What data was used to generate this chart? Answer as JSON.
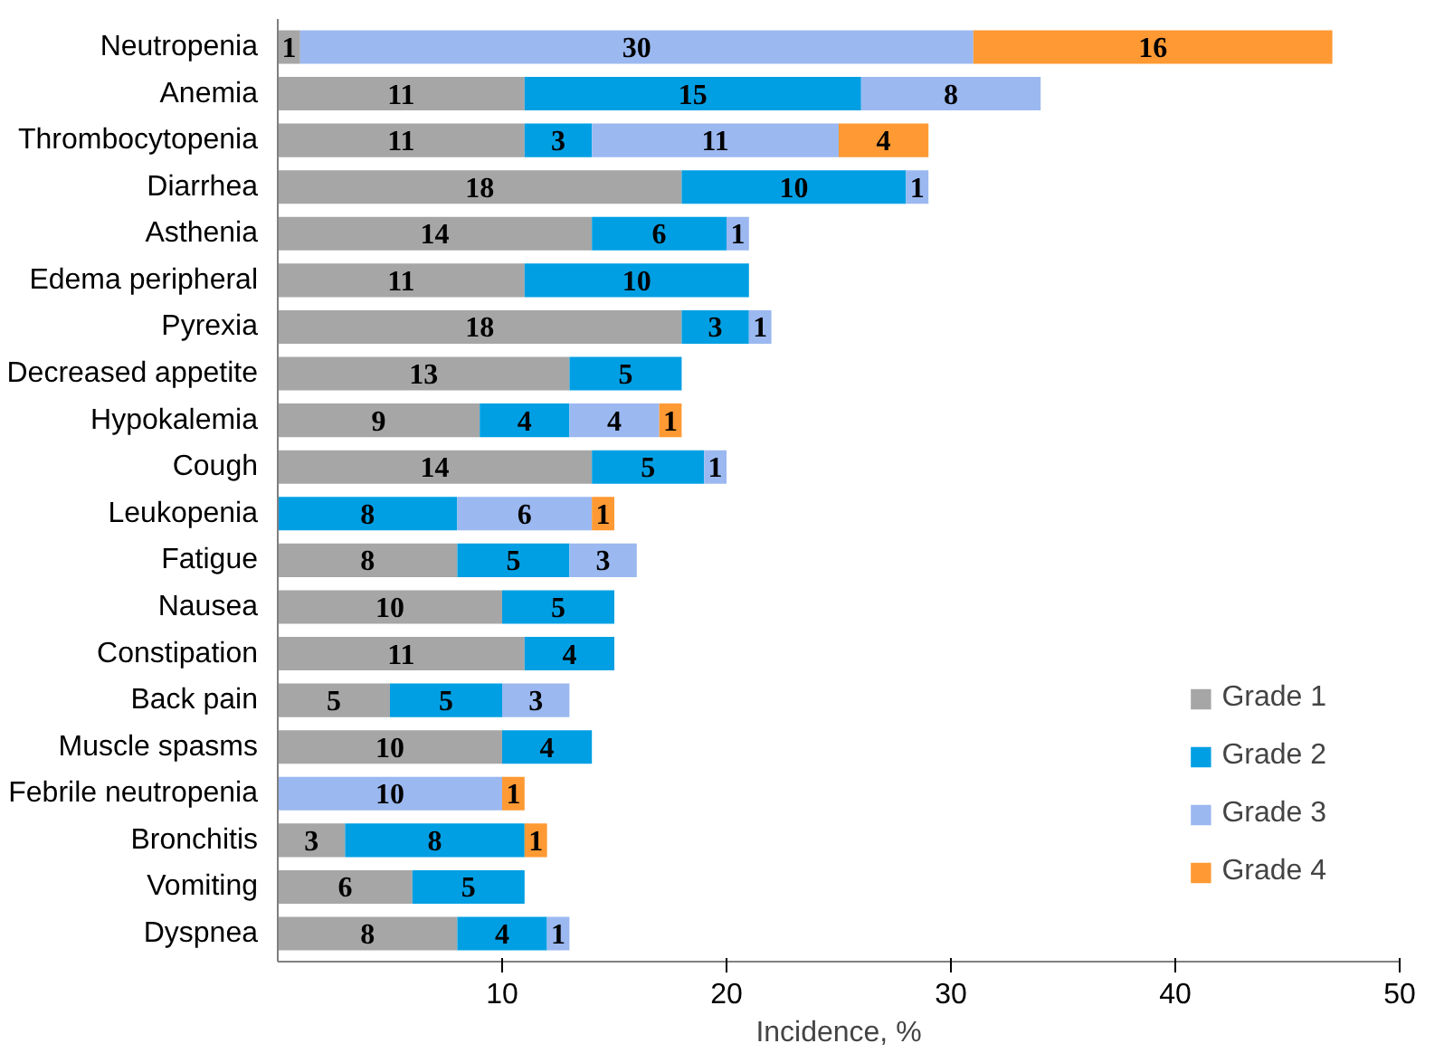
{
  "chart_data": {
    "type": "bar",
    "orientation": "horizontal",
    "stacked": true,
    "xlabel": "Incidence, %",
    "xlim": [
      0,
      50
    ],
    "xticks": [
      10,
      20,
      30,
      40,
      50
    ],
    "grid": false,
    "legend": "bottom right",
    "data_labels": true,
    "categories": [
      "Neutropenia",
      "Anemia",
      "Thrombocytopenia",
      "Diarrhea",
      "Asthenia",
      "Edema peripheral",
      "Pyrexia",
      "Decreased appetite",
      "Hypokalemia",
      "Cough",
      "Leukopenia",
      "Fatigue",
      "Nausea",
      "Constipation",
      "Back pain",
      "Muscle spasms",
      "Febrile neutropenia",
      "Bronchitis",
      "Vomiting",
      "Dyspnea"
    ],
    "series": [
      {
        "name": "Grade 1",
        "color": "#a6a6a6",
        "values": [
          1,
          11,
          11,
          18,
          14,
          11,
          18,
          13,
          9,
          14,
          null,
          8,
          10,
          11,
          5,
          10,
          null,
          3,
          6,
          8
        ]
      },
      {
        "name": "Grade 2",
        "color": "#009fe3",
        "values": [
          null,
          15,
          3,
          10,
          6,
          10,
          3,
          5,
          4,
          5,
          8,
          5,
          5,
          4,
          5,
          4,
          null,
          8,
          5,
          4
        ]
      },
      {
        "name": "Grade 3",
        "color": "#9bb8f0",
        "values": [
          30,
          8,
          11,
          1,
          1,
          null,
          1,
          null,
          4,
          1,
          6,
          3,
          null,
          null,
          3,
          null,
          10,
          null,
          null,
          1
        ]
      },
      {
        "name": "Grade 4",
        "color": "#ff9933",
        "values": [
          16,
          null,
          4,
          null,
          null,
          null,
          null,
          null,
          1,
          null,
          1,
          null,
          null,
          null,
          null,
          null,
          1,
          1,
          null,
          null
        ]
      }
    ]
  }
}
